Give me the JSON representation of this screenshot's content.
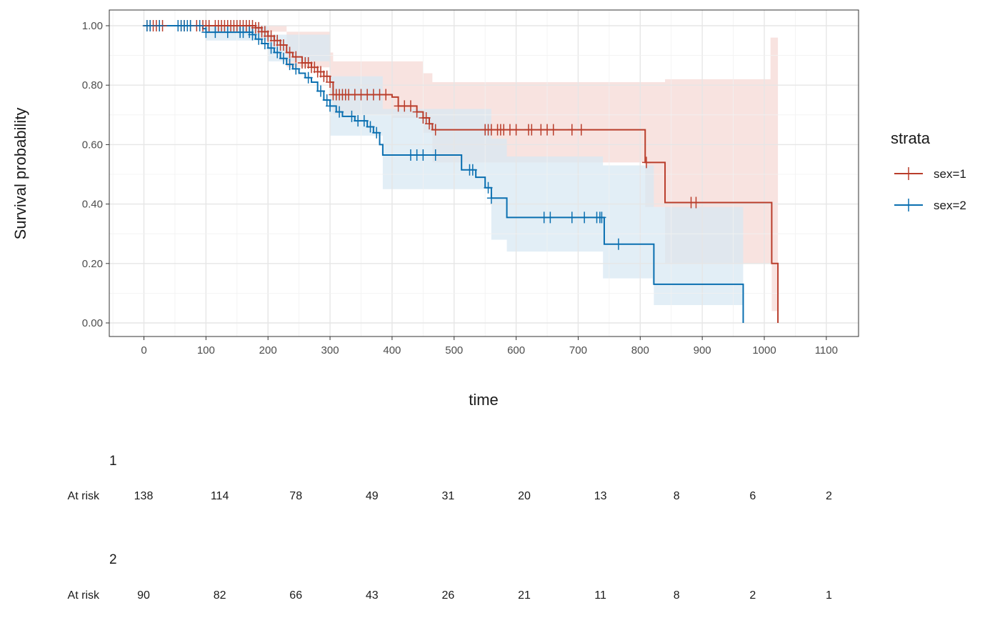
{
  "chart_data": {
    "type": "line",
    "subtype": "kaplan-meier",
    "xlabel": "time",
    "ylabel": "Survival probability",
    "xlim": [
      -55,
      1155
    ],
    "ylim": [
      -0.05,
      1.05
    ],
    "x_ticks": [
      0,
      100,
      200,
      300,
      400,
      500,
      600,
      700,
      800,
      900,
      1000,
      1100
    ],
    "y_ticks": [
      0,
      0.2,
      0.4,
      0.6,
      0.8,
      1.0
    ],
    "y_tick_labels": [
      "0.00",
      "0.20",
      "0.40",
      "0.60",
      "0.80",
      "1.00"
    ],
    "grid": true,
    "confidence_band": true,
    "legend": {
      "title": "strata",
      "position": "right"
    },
    "series": [
      {
        "name": "sex=1",
        "color": "#b93d2b",
        "band_color": "#f6d9d5",
        "steps": [
          [
            0,
            1.0
          ],
          [
            180,
            0.993
          ],
          [
            190,
            0.98
          ],
          [
            200,
            0.965
          ],
          [
            210,
            0.95
          ],
          [
            220,
            0.935
          ],
          [
            230,
            0.91
          ],
          [
            240,
            0.895
          ],
          [
            255,
            0.875
          ],
          [
            270,
            0.86
          ],
          [
            280,
            0.845
          ],
          [
            290,
            0.83
          ],
          [
            300,
            0.81
          ],
          [
            305,
            0.768
          ],
          [
            400,
            0.76
          ],
          [
            410,
            0.73
          ],
          [
            440,
            0.71
          ],
          [
            450,
            0.69
          ],
          [
            460,
            0.67
          ],
          [
            465,
            0.65
          ],
          [
            805,
            0.65
          ],
          [
            808,
            0.54
          ],
          [
            840,
            0.405
          ],
          [
            1010,
            0.405
          ],
          [
            1012,
            0.2
          ],
          [
            1022,
            0.0
          ]
        ],
        "upper": [
          [
            0,
            1.0
          ],
          [
            180,
            1.0
          ],
          [
            230,
            0.98
          ],
          [
            300,
            0.91
          ],
          [
            305,
            0.88
          ],
          [
            400,
            0.88
          ],
          [
            450,
            0.84
          ],
          [
            465,
            0.81
          ],
          [
            805,
            0.81
          ],
          [
            808,
            0.81
          ],
          [
            840,
            0.82
          ],
          [
            1010,
            0.96
          ],
          [
            1022,
            0.96
          ]
        ],
        "lower": [
          [
            0,
            1.0
          ],
          [
            180,
            0.98
          ],
          [
            230,
            0.86
          ],
          [
            300,
            0.77
          ],
          [
            305,
            0.7
          ],
          [
            400,
            0.69
          ],
          [
            450,
            0.64
          ],
          [
            465,
            0.54
          ],
          [
            805,
            0.54
          ],
          [
            808,
            0.39
          ],
          [
            840,
            0.2
          ],
          [
            1010,
            0.2
          ],
          [
            1012,
            0.04
          ],
          [
            1022,
            0.0
          ]
        ],
        "censor_times": [
          5,
          10,
          15,
          20,
          25,
          30,
          60,
          65,
          75,
          85,
          95,
          100,
          105,
          115,
          120,
          125,
          130,
          135,
          140,
          145,
          150,
          155,
          160,
          165,
          170,
          175,
          180,
          185,
          190,
          195,
          200,
          205,
          210,
          215,
          220,
          225,
          235,
          245,
          255,
          260,
          265,
          270,
          275,
          280,
          285,
          290,
          295,
          300,
          305,
          310,
          315,
          320,
          325,
          330,
          340,
          350,
          360,
          370,
          380,
          390,
          410,
          420,
          430,
          440,
          450,
          455,
          460,
          470,
          550,
          555,
          560,
          570,
          575,
          580,
          590,
          600,
          620,
          625,
          640,
          650,
          660,
          690,
          705,
          890,
          810,
          882
        ],
        "at_risk": [
          138,
          114,
          78,
          49,
          31,
          20,
          13,
          8,
          6,
          2
        ]
      },
      {
        "name": "sex=2",
        "color": "#0a6fb0",
        "band_color": "#d8e8f3",
        "steps": [
          [
            0,
            1.0
          ],
          [
            95,
            0.99
          ],
          [
            100,
            0.978
          ],
          [
            175,
            0.97
          ],
          [
            180,
            0.955
          ],
          [
            190,
            0.94
          ],
          [
            200,
            0.925
          ],
          [
            210,
            0.91
          ],
          [
            220,
            0.89
          ],
          [
            230,
            0.87
          ],
          [
            240,
            0.855
          ],
          [
            250,
            0.84
          ],
          [
            260,
            0.825
          ],
          [
            270,
            0.81
          ],
          [
            280,
            0.78
          ],
          [
            290,
            0.75
          ],
          [
            300,
            0.73
          ],
          [
            310,
            0.71
          ],
          [
            320,
            0.695
          ],
          [
            340,
            0.68
          ],
          [
            360,
            0.66
          ],
          [
            370,
            0.64
          ],
          [
            380,
            0.6
          ],
          [
            385,
            0.565
          ],
          [
            510,
            0.565
          ],
          [
            512,
            0.515
          ],
          [
            535,
            0.49
          ],
          [
            550,
            0.455
          ],
          [
            560,
            0.42
          ],
          [
            585,
            0.355
          ],
          [
            740,
            0.355
          ],
          [
            742,
            0.265
          ],
          [
            820,
            0.265
          ],
          [
            822,
            0.13
          ],
          [
            965,
            0.13
          ],
          [
            966,
            0.0
          ]
        ],
        "upper": [
          [
            0,
            1.0
          ],
          [
            100,
            1.0
          ],
          [
            200,
            0.97
          ],
          [
            300,
            0.83
          ],
          [
            385,
            0.72
          ],
          [
            510,
            0.72
          ],
          [
            560,
            0.62
          ],
          [
            585,
            0.56
          ],
          [
            740,
            0.53
          ],
          [
            820,
            0.53
          ],
          [
            822,
            0.39
          ],
          [
            966,
            0.39
          ]
        ],
        "lower": [
          [
            0,
            1.0
          ],
          [
            100,
            0.95
          ],
          [
            200,
            0.88
          ],
          [
            300,
            0.63
          ],
          [
            385,
            0.45
          ],
          [
            510,
            0.45
          ],
          [
            560,
            0.28
          ],
          [
            585,
            0.24
          ],
          [
            740,
            0.15
          ],
          [
            820,
            0.13
          ],
          [
            822,
            0.06
          ],
          [
            966,
            0.0
          ]
        ],
        "censor_times": [
          5,
          10,
          25,
          55,
          60,
          65,
          70,
          75,
          90,
          100,
          115,
          135,
          155,
          160,
          170,
          175,
          185,
          195,
          205,
          215,
          225,
          235,
          245,
          265,
          285,
          295,
          300,
          315,
          335,
          345,
          355,
          365,
          375,
          430,
          440,
          450,
          470,
          525,
          530,
          555,
          560,
          645,
          655,
          690,
          710,
          730,
          735,
          738,
          765
        ],
        "at_risk": [
          90,
          82,
          66,
          43,
          26,
          21,
          11,
          8,
          2,
          1
        ]
      }
    ],
    "risk_table": {
      "groups": [
        {
          "label": "1",
          "row_label": "At risk",
          "values": [
            138,
            114,
            78,
            49,
            31,
            20,
            13,
            8,
            6,
            2
          ]
        },
        {
          "label": "2",
          "row_label": "At risk",
          "values": [
            90,
            82,
            66,
            43,
            26,
            21,
            11,
            8,
            2,
            1
          ]
        }
      ]
    }
  }
}
